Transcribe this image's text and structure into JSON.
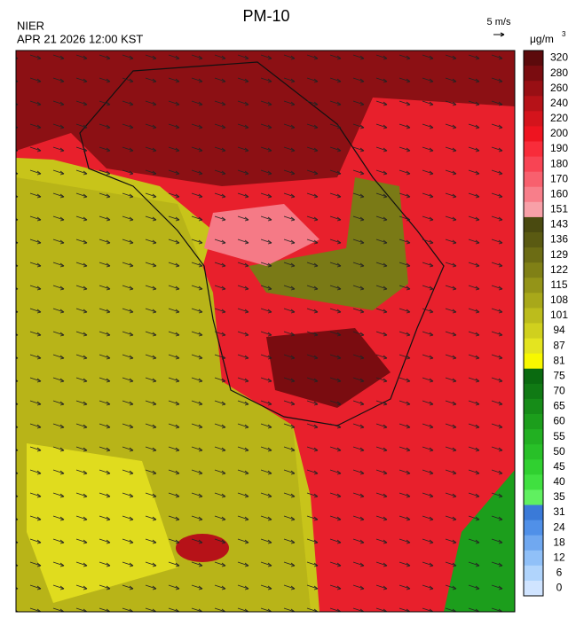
{
  "header": {
    "agency": "NIER",
    "datetime": "APR 21 2026 12:00 KST",
    "title": "PM-10",
    "wind_scale": "5 m/s",
    "unit": "μg/m",
    "unit_exponent": "3"
  },
  "colorbar": [
    {
      "label": 320,
      "color": "#5c0a0c"
    },
    {
      "label": 280,
      "color": "#7a0c10"
    },
    {
      "label": 260,
      "color": "#980f14"
    },
    {
      "label": 240,
      "color": "#b61218"
    },
    {
      "label": 220,
      "color": "#d4141c"
    },
    {
      "label": 200,
      "color": "#ee1420"
    },
    {
      "label": 190,
      "color": "#f82c3a"
    },
    {
      "label": 180,
      "color": "#f84454"
    },
    {
      "label": 170,
      "color": "#f8606e"
    },
    {
      "label": 160,
      "color": "#f87e8a"
    },
    {
      "label": 151,
      "color": "#f8a0a8"
    },
    {
      "label": 143,
      "color": "#4a4a10"
    },
    {
      "label": 136,
      "color": "#5a5a12"
    },
    {
      "label": 129,
      "color": "#6c6c14"
    },
    {
      "label": 122,
      "color": "#808016"
    },
    {
      "label": 115,
      "color": "#949418"
    },
    {
      "label": 108,
      "color": "#a8a81a"
    },
    {
      "label": 101,
      "color": "#bcbc1c"
    },
    {
      "label": 94,
      "color": "#d0d01e"
    },
    {
      "label": 87,
      "color": "#e4e420"
    },
    {
      "label": 81,
      "color": "#f8f800"
    },
    {
      "label": 75,
      "color": "#0a6a10"
    },
    {
      "label": 70,
      "color": "#107a14"
    },
    {
      "label": 65,
      "color": "#168c18"
    },
    {
      "label": 60,
      "color": "#1c9e1c"
    },
    {
      "label": 55,
      "color": "#22b022"
    },
    {
      "label": 50,
      "color": "#28c028"
    },
    {
      "label": 45,
      "color": "#30d030"
    },
    {
      "label": 40,
      "color": "#40e040"
    },
    {
      "label": 35,
      "color": "#60f060"
    },
    {
      "label": 31,
      "color": "#3a7ad8"
    },
    {
      "label": 24,
      "color": "#5090e8"
    },
    {
      "label": 18,
      "color": "#70a8f0"
    },
    {
      "label": 12,
      "color": "#90c0f8"
    },
    {
      "label": 6,
      "color": "#b0d4fc"
    },
    {
      "label": 0,
      "color": "#d0e4ff"
    }
  ]
}
